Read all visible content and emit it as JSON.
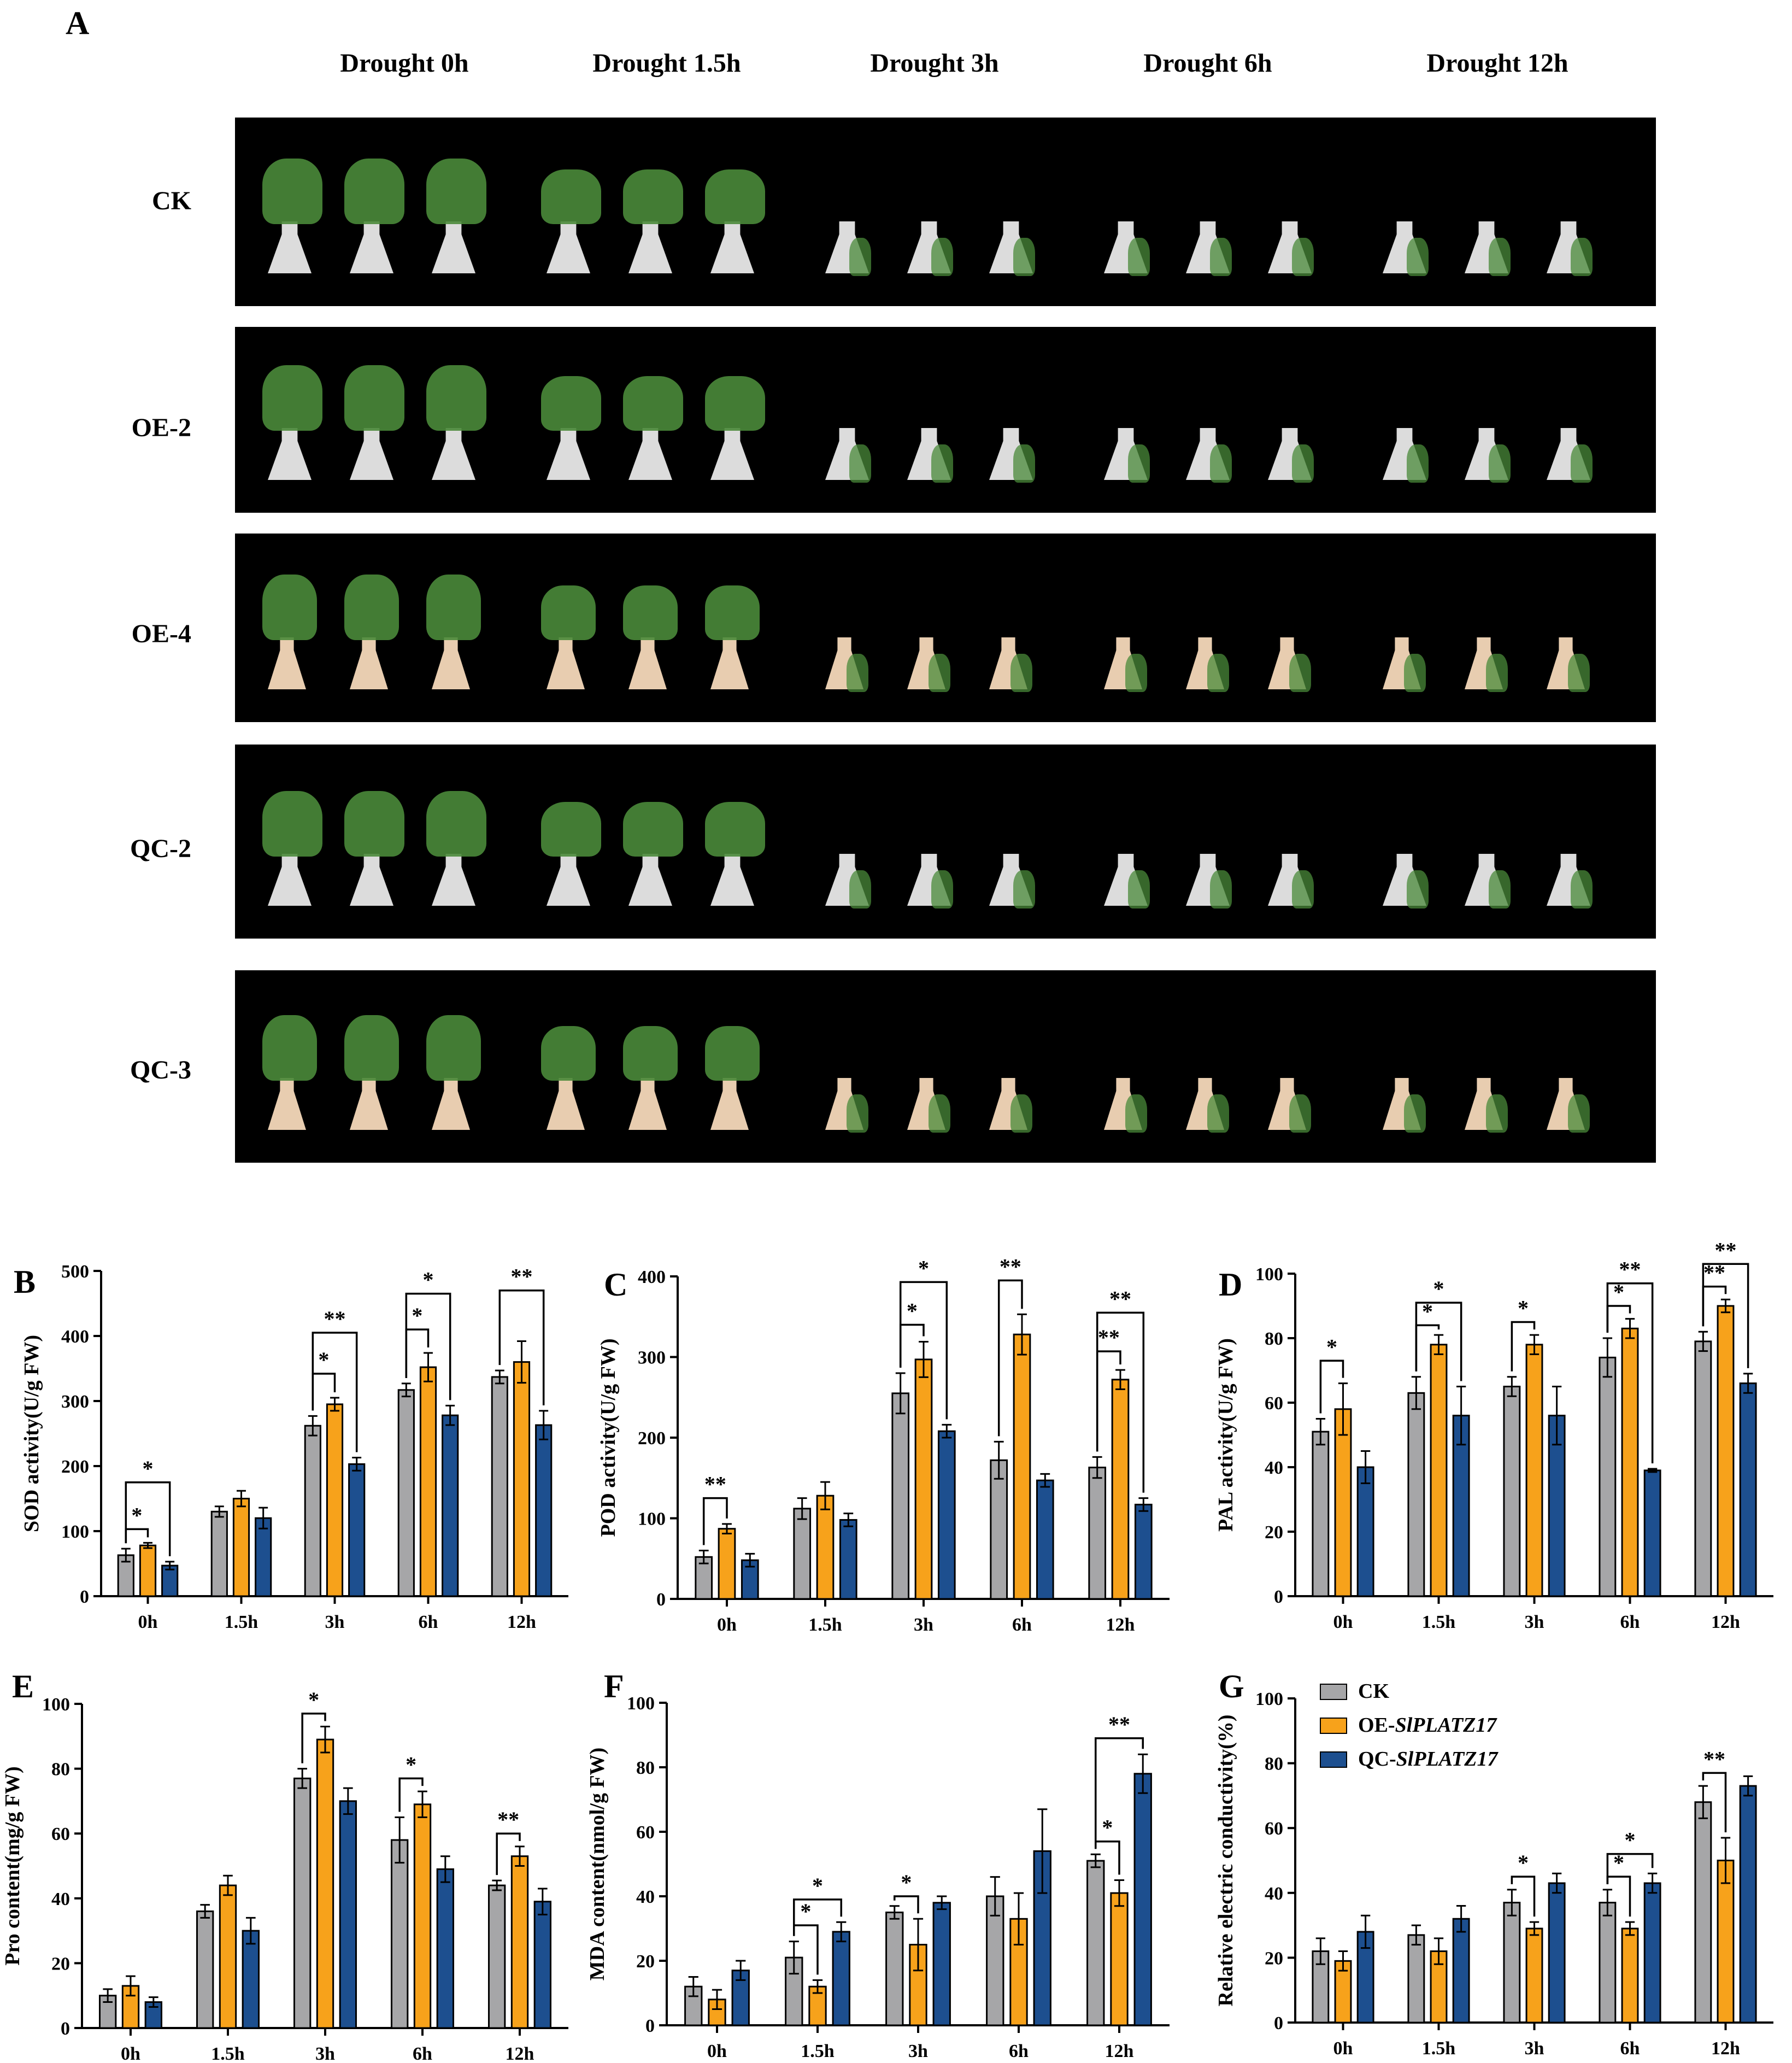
{
  "panel_A": {
    "letter": "A",
    "column_headers": [
      "Drought 0h",
      "Drought 1.5h",
      "Drought 3h",
      "Drought 6h",
      "Drought 12h"
    ],
    "rows": [
      "CK",
      "OE-2",
      "OE-4",
      "QC-2",
      "QC-3"
    ]
  },
  "colors": {
    "ck": "#a6a6a8",
    "oe": "#f7a21b",
    "qc": "#1d4f8f",
    "plant": "#4a8a3a",
    "flask": "#dcdcdc"
  },
  "legend": {
    "ck": "CK",
    "oe_prefix": "OE-",
    "oe_gene": "SlPLATZ17",
    "qc_prefix": "QC-",
    "qc_gene": "SlPLATZ17"
  },
  "chart_data": [
    {
      "panel": "B",
      "type": "bar",
      "ylabel": "SOD activity(U/g FW)",
      "categories": [
        "0h",
        "1.5h",
        "3h",
        "6h",
        "12h"
      ],
      "ylim": [
        0,
        500
      ],
      "yticks": [
        0,
        100,
        200,
        300,
        400,
        500
      ],
      "series": [
        {
          "name": "CK",
          "values": [
            63,
            130,
            262,
            317,
            337
          ],
          "errors": [
            10,
            8,
            15,
            10,
            10
          ]
        },
        {
          "name": "OE-SlPLATZ17",
          "values": [
            78,
            150,
            295,
            352,
            360
          ],
          "errors": [
            4,
            12,
            10,
            22,
            32
          ]
        },
        {
          "name": "QC-SlPLATZ17",
          "values": [
            47,
            120,
            203,
            278,
            263
          ],
          "errors": [
            6,
            16,
            10,
            15,
            22
          ]
        }
      ],
      "annotations": [
        {
          "cat": 0,
          "from": 0,
          "to": 1,
          "top": 103,
          "text": "*"
        },
        {
          "cat": 0,
          "from": 0,
          "to": 2,
          "top": 175,
          "text": "*"
        },
        {
          "cat": 2,
          "from": 0,
          "to": 1,
          "top": 342,
          "text": "*"
        },
        {
          "cat": 2,
          "from": 0,
          "to": 2,
          "top": 405,
          "text": "**"
        },
        {
          "cat": 3,
          "from": 0,
          "to": 1,
          "top": 410,
          "text": "*"
        },
        {
          "cat": 3,
          "from": 0,
          "to": 2,
          "top": 465,
          "text": "*"
        },
        {
          "cat": 4,
          "from": 0,
          "to": 2,
          "top": 470,
          "text": "**"
        }
      ]
    },
    {
      "panel": "C",
      "type": "bar",
      "ylabel": "POD activity(U/g FW)",
      "categories": [
        "0h",
        "1.5h",
        "3h",
        "6h",
        "12h"
      ],
      "ylim": [
        0,
        400
      ],
      "yticks": [
        0,
        100,
        200,
        300,
        400
      ],
      "series": [
        {
          "name": "CK",
          "values": [
            52,
            112,
            255,
            172,
            163
          ],
          "errors": [
            8,
            13,
            25,
            23,
            13
          ]
        },
        {
          "name": "OE-SlPLATZ17",
          "values": [
            87,
            128,
            297,
            328,
            272
          ],
          "errors": [
            6,
            17,
            22,
            25,
            12
          ]
        },
        {
          "name": "QC-SlPLATZ17",
          "values": [
            48,
            98,
            208,
            147,
            117
          ],
          "errors": [
            8,
            8,
            8,
            8,
            8
          ]
        }
      ],
      "annotations": [
        {
          "cat": 0,
          "from": 0,
          "to": 1,
          "top": 125,
          "text": "**"
        },
        {
          "cat": 2,
          "from": 0,
          "to": 1,
          "top": 340,
          "text": "*"
        },
        {
          "cat": 2,
          "from": 0,
          "to": 2,
          "top": 393,
          "text": "*"
        },
        {
          "cat": 3,
          "from": 0,
          "to": 1,
          "top": 395,
          "text": "**"
        },
        {
          "cat": 4,
          "from": 0,
          "to": 1,
          "top": 307,
          "text": "**"
        },
        {
          "cat": 4,
          "from": 0,
          "to": 2,
          "top": 355,
          "text": "**"
        }
      ]
    },
    {
      "panel": "D",
      "type": "bar",
      "ylabel": "PAL activity(U/g FW)",
      "categories": [
        "0h",
        "1.5h",
        "3h",
        "6h",
        "12h"
      ],
      "ylim": [
        0,
        100
      ],
      "yticks": [
        0,
        20,
        40,
        60,
        80,
        100
      ],
      "series": [
        {
          "name": "CK",
          "values": [
            51,
            63,
            65,
            74,
            79
          ],
          "errors": [
            4,
            5,
            3,
            6,
            3
          ]
        },
        {
          "name": "OE-SlPLATZ17",
          "values": [
            58,
            78,
            78,
            83,
            90
          ],
          "errors": [
            8,
            3,
            3,
            3,
            2
          ]
        },
        {
          "name": "QC-SlPLATZ17",
          "values": [
            40,
            56,
            56,
            39,
            66
          ],
          "errors": [
            5,
            9,
            9,
            0.5,
            3
          ]
        }
      ],
      "annotations": [
        {
          "cat": 0,
          "from": 0,
          "to": 1,
          "top": 73,
          "text": "*"
        },
        {
          "cat": 1,
          "from": 0,
          "to": 1,
          "top": 84,
          "text": "*"
        },
        {
          "cat": 1,
          "from": 0,
          "to": 2,
          "top": 91,
          "text": "*"
        },
        {
          "cat": 2,
          "from": 0,
          "to": 1,
          "top": 85,
          "text": "*"
        },
        {
          "cat": 3,
          "from": 0,
          "to": 1,
          "top": 90,
          "text": "*"
        },
        {
          "cat": 3,
          "from": 0,
          "to": 2,
          "top": 97,
          "text": "**"
        },
        {
          "cat": 4,
          "from": 0,
          "to": 1,
          "top": 96,
          "text": "**"
        },
        {
          "cat": 4,
          "from": 0,
          "to": 2,
          "top": 103,
          "text": "**"
        }
      ]
    },
    {
      "panel": "E",
      "type": "bar",
      "ylabel": "Pro content(mg/g FW)",
      "categories": [
        "0h",
        "1.5h",
        "3h",
        "6h",
        "12h"
      ],
      "ylim": [
        0,
        100
      ],
      "yticks": [
        0,
        20,
        40,
        60,
        80,
        100
      ],
      "series": [
        {
          "name": "CK",
          "values": [
            10,
            36,
            77,
            58,
            44
          ],
          "errors": [
            2,
            2,
            3,
            7,
            1.5
          ]
        },
        {
          "name": "OE-SlPLATZ17",
          "values": [
            13,
            44,
            89,
            69,
            53
          ],
          "errors": [
            3,
            3,
            4,
            4,
            3
          ]
        },
        {
          "name": "QC-SlPLATZ17",
          "values": [
            8,
            30,
            70,
            49,
            39
          ],
          "errors": [
            1.5,
            4,
            4,
            4,
            4
          ]
        }
      ],
      "annotations": [
        {
          "cat": 2,
          "from": 0,
          "to": 1,
          "top": 97,
          "text": "*"
        },
        {
          "cat": 3,
          "from": 0,
          "to": 1,
          "top": 77,
          "text": "*"
        },
        {
          "cat": 4,
          "from": 0,
          "to": 1,
          "top": 60,
          "text": "**"
        }
      ]
    },
    {
      "panel": "F",
      "type": "bar",
      "ylabel": "MDA content(nmol/g FW)",
      "categories": [
        "0h",
        "1.5h",
        "3h",
        "6h",
        "12h"
      ],
      "ylim": [
        0,
        100
      ],
      "yticks": [
        0,
        20,
        40,
        60,
        80,
        100
      ],
      "series": [
        {
          "name": "CK",
          "values": [
            12,
            21,
            35,
            40,
            51
          ],
          "errors": [
            3,
            5,
            2,
            6,
            2
          ]
        },
        {
          "name": "OE-SlPLATZ17",
          "values": [
            8,
            12,
            25,
            33,
            41
          ],
          "errors": [
            3,
            2,
            8,
            8,
            4
          ]
        },
        {
          "name": "QC-SlPLATZ17",
          "values": [
            17,
            29,
            38,
            54,
            78
          ],
          "errors": [
            3,
            3,
            2,
            13,
            6
          ]
        }
      ],
      "annotations": [
        {
          "cat": 1,
          "from": 0,
          "to": 1,
          "top": 31,
          "text": "*"
        },
        {
          "cat": 1,
          "from": 0,
          "to": 2,
          "top": 39,
          "text": "*"
        },
        {
          "cat": 2,
          "from": 0,
          "to": 1,
          "top": 40,
          "text": "*"
        },
        {
          "cat": 4,
          "from": 0,
          "to": 1,
          "top": 57,
          "text": "*"
        },
        {
          "cat": 4,
          "from": 0,
          "to": 2,
          "top": 89,
          "text": "**"
        }
      ]
    },
    {
      "panel": "G",
      "type": "bar",
      "ylabel": "Relative electric conductivity(%)",
      "categories": [
        "0h",
        "1.5h",
        "3h",
        "6h",
        "12h"
      ],
      "ylim": [
        0,
        100
      ],
      "yticks": [
        0,
        20,
        40,
        60,
        80,
        100
      ],
      "series": [
        {
          "name": "CK",
          "values": [
            22,
            27,
            37,
            37,
            68
          ],
          "errors": [
            4,
            3,
            4,
            4,
            5
          ]
        },
        {
          "name": "OE-SlPLATZ17",
          "values": [
            19,
            22,
            29,
            29,
            50
          ],
          "errors": [
            3,
            4,
            2,
            2,
            7
          ]
        },
        {
          "name": "QC-SlPLATZ17",
          "values": [
            28,
            32,
            43,
            43,
            73
          ],
          "errors": [
            5,
            4,
            3,
            3,
            3
          ]
        }
      ],
      "annotations": [
        {
          "cat": 2,
          "from": 0,
          "to": 1,
          "top": 45,
          "text": "*"
        },
        {
          "cat": 3,
          "from": 0,
          "to": 1,
          "top": 45,
          "text": "*"
        },
        {
          "cat": 3,
          "from": 0,
          "to": 2,
          "top": 52,
          "text": "*"
        },
        {
          "cat": 4,
          "from": 0,
          "to": 1,
          "top": 77,
          "text": "**"
        }
      ]
    }
  ]
}
